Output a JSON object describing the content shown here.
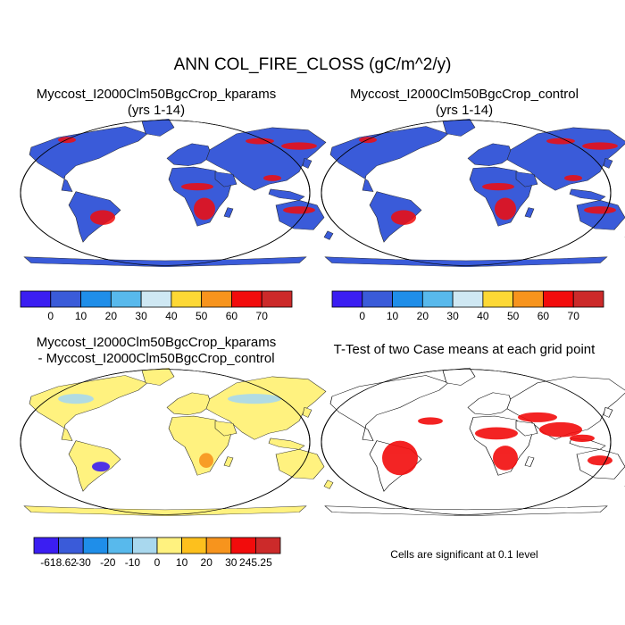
{
  "figure": {
    "title": "ANN COL_FIRE_CLOSS (gC/m^2/y)"
  },
  "panels": [
    {
      "id": "kparams",
      "title_line1": "Myccost_I2000Clm50BgcCrop_kparams",
      "title_line2": "(yrs 1-14)"
    },
    {
      "id": "control",
      "title_line1": "Myccost_I2000Clm50BgcCrop_control",
      "title_line2": "(yrs 1-14)"
    },
    {
      "id": "difference",
      "title_line1": "Myccost_I2000Clm50BgcCrop_kparams",
      "title_line2": "- Myccost_I2000Clm50BgcCrop_control"
    },
    {
      "id": "ttest",
      "title_line1": "T-Test of two Case means at each grid point",
      "title_line2": ""
    }
  ],
  "colorbars": {
    "main": {
      "colors": [
        "#3b1ef2",
        "#3a5bd9",
        "#1f8ee9",
        "#58b9ec",
        "#cfe8f3",
        "#fdd835",
        "#f7941d",
        "#f20c0c",
        "#cc2a2a"
      ],
      "labels": [
        "0",
        "10",
        "20",
        "30",
        "40",
        "50",
        "60",
        "70"
      ]
    },
    "diff": {
      "colors": [
        "#3b1ef2",
        "#3a5bd9",
        "#1f8ee9",
        "#58b9ec",
        "#a9d8ee",
        "#fff27f",
        "#fdc01d",
        "#f7941d",
        "#f20c0c",
        "#cc2a2a"
      ],
      "labels": [
        "-618.62",
        "-30",
        "-20",
        "-10",
        "0",
        "10",
        "20",
        "30",
        "245.25"
      ]
    }
  },
  "maps": {
    "ocean_color": "#ffffff",
    "land_color_main": "#3a5bd9",
    "land_color_diff": "#fff27f",
    "significant_color": "#f20c0c"
  },
  "ttest_note": "Cells are significant at 0.1 level"
}
